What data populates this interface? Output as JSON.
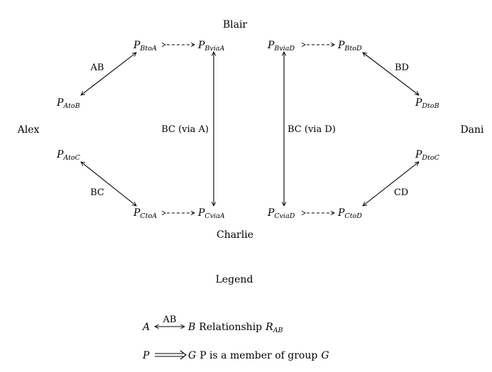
{
  "people": {
    "blair": "Blair",
    "alex": "Alex",
    "dani": "Dani",
    "charlie": "Charlie"
  },
  "nodes": {
    "p_btoa": {
      "base": "P",
      "sub": "BtoA"
    },
    "p_bviaa": {
      "base": "P",
      "sub": "BviaA"
    },
    "p_bviad": {
      "base": "P",
      "sub": "BviaD"
    },
    "p_btod": {
      "base": "P",
      "sub": "BtoD"
    },
    "p_atob": {
      "base": "P",
      "sub": "AtoB"
    },
    "p_dtob": {
      "base": "P",
      "sub": "DtoB"
    },
    "p_atoc": {
      "base": "P",
      "sub": "AtoC"
    },
    "p_dtoc": {
      "base": "P",
      "sub": "DtoC"
    },
    "p_ctoa": {
      "base": "P",
      "sub": "CtoA"
    },
    "p_cviaa": {
      "base": "P",
      "sub": "CviaA"
    },
    "p_cviad": {
      "base": "P",
      "sub": "CviaD"
    },
    "p_ctod": {
      "base": "P",
      "sub": "CtoD"
    }
  },
  "edges": {
    "ab": "AB",
    "bd": "BD",
    "bc_via_a": "BC (via A)",
    "bc_via_d": "BC (via D)",
    "bc": "BC",
    "cd": "CD"
  },
  "legend": {
    "title": "Legend",
    "rel_left": "A",
    "rel_arrow_label": "AB",
    "rel_right": "B",
    "rel_text": "Relationship",
    "rel_symbol": {
      "base": "R",
      "sub": "AB"
    },
    "member_left": "P",
    "member_right": "G",
    "member_text": "P is a member of group",
    "member_group": "G"
  }
}
